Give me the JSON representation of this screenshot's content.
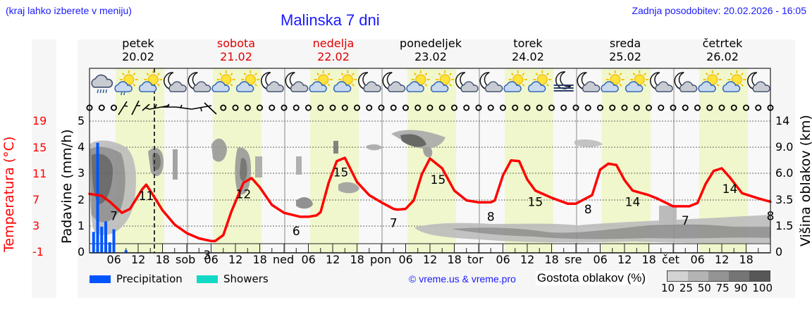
{
  "header": {
    "region_hint": "(kraj lahko izberete v meniju)",
    "title": "Malinska 7 dni",
    "last_update": "Zadnja posodobitev: 20.02.2026 - 16:05"
  },
  "days": [
    {
      "name": "petek",
      "date": "20.02",
      "weekend": false
    },
    {
      "name": "sobota",
      "date": "21.02",
      "weekend": true
    },
    {
      "name": "nedelja",
      "date": "22.02",
      "weekend": true
    },
    {
      "name": "ponedeljek",
      "date": "23.02",
      "weekend": false
    },
    {
      "name": "torek",
      "date": "24.02",
      "weekend": false
    },
    {
      "name": "sreda",
      "date": "25.02",
      "weekend": false
    },
    {
      "name": "četrtek",
      "date": "26.02",
      "weekend": false
    }
  ],
  "axes": {
    "temperature_label": "Temperatura (°C)",
    "temperature_ticks": [
      "19",
      "15",
      "11",
      "7",
      "3",
      "-1"
    ],
    "precip_label": "Padavine (mm/h)",
    "precip_ticks": [
      "5",
      "4",
      "3",
      "2",
      "1",
      "0"
    ],
    "cloud_label": "Višina oblakov (km)",
    "cloud_ticks": [
      "14",
      "9.0",
      "6.0",
      "3.5",
      "1.5",
      "0"
    ],
    "x_ticks": [
      "06",
      "12",
      "18",
      "sob",
      "06",
      "12",
      "18",
      "ned",
      "06",
      "12",
      "18",
      "pon",
      "06",
      "12",
      "18",
      "tor",
      "06",
      "12",
      "18",
      "sre",
      "06",
      "12",
      "18",
      "čet",
      "06",
      "12",
      "18"
    ]
  },
  "legend": {
    "precipitation": "Precipitation",
    "showers": "Showers",
    "copyright": "© vreme.us & vreme.pro",
    "cloud_density_label": "Gostota oblakov (%)",
    "cloud_density_scale": [
      "10",
      "25",
      "50",
      "75",
      "90",
      "100"
    ]
  },
  "colors": {
    "precipitation": "#0055ff",
    "showers": "#11d9c6",
    "temperature": "#ff0000",
    "daylight": "#f0f7cc",
    "header_text": "#1a1aff",
    "weekend": "#e00000"
  },
  "icons": [
    "rain-cloud-icon",
    "sun-cloud-drizzle-icon",
    "sun-cloud-icon",
    "moon-cloud-icon",
    "moon-cloud-icon",
    "sun-cloud-icon",
    "sun-cloud-icon",
    "moon-cloud-icon",
    "moon-cloud-icon",
    "sun-cloud-icon",
    "sun-cloud-icon",
    "moon-cloud-icon",
    "moon-cloud-icon",
    "sun-cloud-icon",
    "sun-cloud-icon",
    "moon-cloud-icon",
    "moon-cloud-icon",
    "sun-cloud-icon",
    "sun-cloud-icon",
    "moon-fog-icon",
    "moon-cloud-icon",
    "sun-cloud-icon",
    "sun-cloud-icon",
    "moon-cloud-icon",
    "moon-cloud-icon",
    "sun-cloud-icon",
    "sun-cloud-icon",
    "moon-cloud-icon"
  ],
  "chart_data": {
    "type": "line",
    "title": "Malinska 7 dni",
    "xlabel": "",
    "ylabel": "Temperatura (°C) / Padavine (mm/h)",
    "y2label": "Višina oblakov (km)",
    "ylim_temperature": [
      -1,
      19
    ],
    "ylim_precip": [
      0,
      5
    ],
    "x_range_hours": [
      0,
      168
    ],
    "grid": true,
    "now_marker_hour": 16,
    "series": [
      {
        "name": "Temperatura",
        "type": "line",
        "color": "#ff0000",
        "points_hours": [
          0,
          3,
          5,
          8,
          10,
          13,
          14,
          16,
          18,
          21,
          24,
          27,
          30,
          31,
          33,
          35,
          38,
          40,
          42,
          45,
          48,
          52,
          54,
          56,
          57,
          59,
          61,
          63,
          66,
          69,
          72,
          75,
          76,
          78,
          80,
          82,
          84,
          87,
          90,
          93,
          96,
          99,
          100,
          102,
          104,
          106,
          108,
          110,
          114,
          118,
          120,
          124,
          126,
          128,
          130,
          132,
          134,
          138,
          140,
          144,
          148,
          150,
          152,
          154,
          156,
          158,
          161,
          165,
          168
        ],
        "values": [
          7.9,
          7.6,
          6.7,
          5.0,
          5.6,
          8.6,
          9.3,
          7.4,
          5.4,
          3.2,
          1.9,
          1.1,
          0.7,
          0.7,
          1.6,
          5.2,
          9.6,
          10.3,
          8.9,
          6.2,
          5.0,
          4.4,
          4.4,
          4.6,
          5.1,
          9.6,
          12.9,
          13.4,
          9.7,
          7.7,
          6.6,
          5.6,
          5.5,
          5.6,
          6.9,
          10.9,
          13.3,
          11.8,
          8.4,
          6.9,
          6.6,
          6.6,
          6.9,
          10.7,
          13.0,
          12.9,
          10.1,
          8.4,
          7.3,
          6.4,
          6.4,
          7.7,
          11.6,
          12.5,
          12.3,
          10.0,
          8.4,
          7.7,
          7.2,
          6.0,
          6.0,
          6.5,
          9.4,
          11.4,
          11.8,
          10.4,
          8.0,
          7.2,
          6.7
        ]
      },
      {
        "name": "Precipitation",
        "type": "bar",
        "unit": "mm/h",
        "color": "#0055ff",
        "hours": [
          1,
          2,
          3,
          4,
          5,
          6,
          9
        ],
        "values": [
          0.8,
          4.2,
          1.0,
          1.2,
          0.4,
          0.9,
          0.1
        ]
      },
      {
        "name": "Showers",
        "type": "bar",
        "unit": "mm/h",
        "color": "#11d9c6",
        "hours": [],
        "values": []
      }
    ],
    "annotations": [
      {
        "hour": 6,
        "text": "7"
      },
      {
        "hour": 14,
        "text": "11"
      },
      {
        "hour": 29,
        "text": "3"
      },
      {
        "hour": 38,
        "text": "12"
      },
      {
        "hour": 51,
        "text": "6"
      },
      {
        "hour": 62,
        "text": "15"
      },
      {
        "hour": 75,
        "text": "7"
      },
      {
        "hour": 86,
        "text": "15"
      },
      {
        "hour": 99,
        "text": "8"
      },
      {
        "hour": 110,
        "text": "15"
      },
      {
        "hour": 123,
        "text": "8"
      },
      {
        "hour": 134,
        "text": "14"
      },
      {
        "hour": 147,
        "text": "7"
      },
      {
        "hour": 158,
        "text": "14"
      },
      {
        "hour": 168,
        "text": "8"
      }
    ],
    "legend": [
      "Precipitation",
      "Showers",
      "Gostota oblakov (%)"
    ],
    "legend_position": "bottom"
  }
}
